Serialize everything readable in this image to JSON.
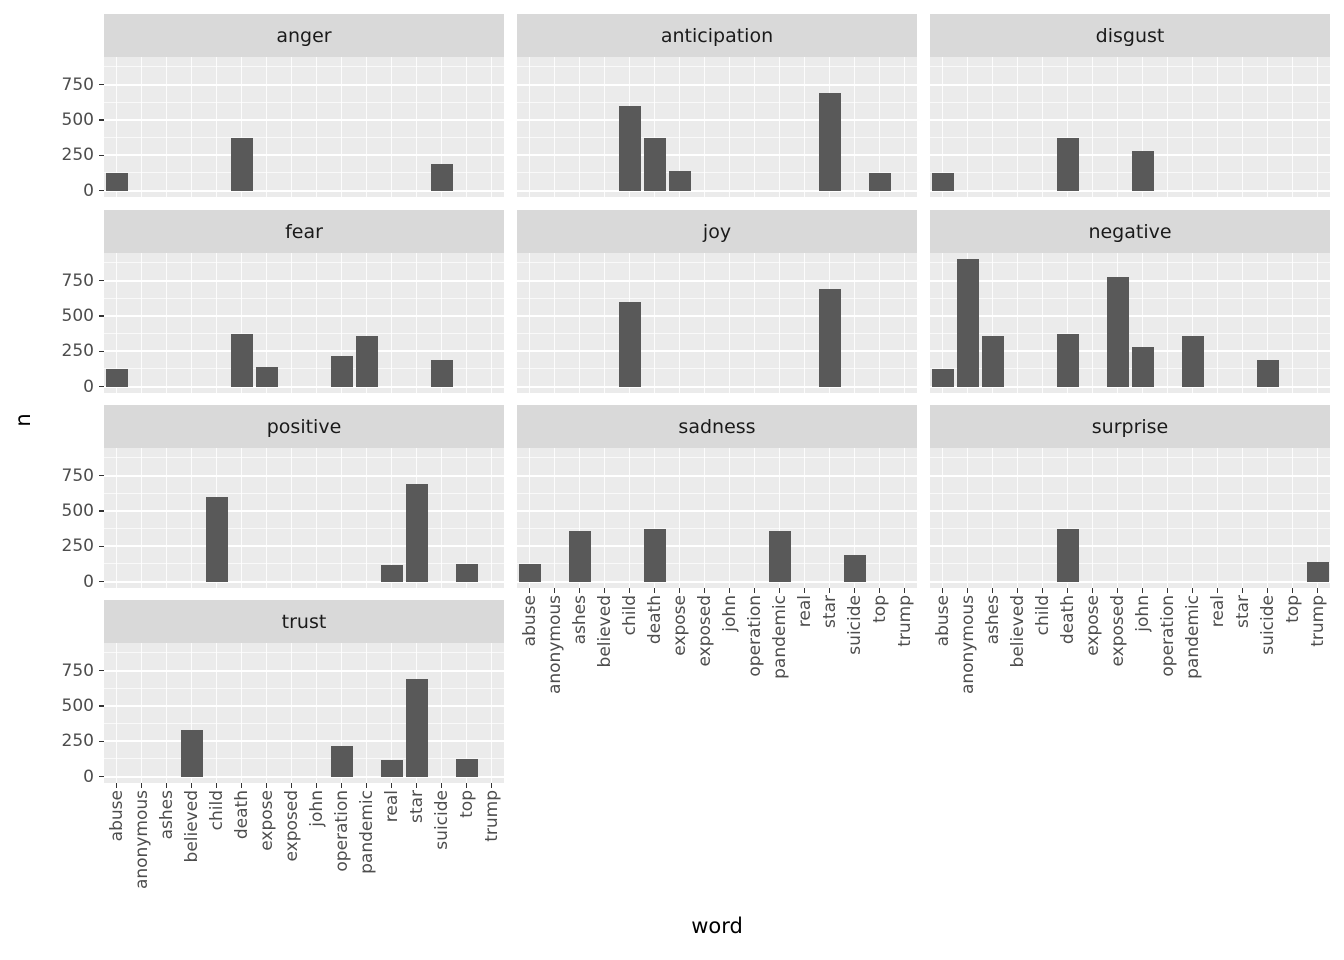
{
  "chart_data": {
    "type": "bar",
    "title": "",
    "xlabel": "word",
    "ylabel": "n",
    "legend": "none",
    "grid": true,
    "categories": [
      "abuse",
      "anonymous",
      "ashes",
      "believed",
      "child",
      "death",
      "expose",
      "exposed",
      "john",
      "operation",
      "pandemic",
      "real",
      "star",
      "suicide",
      "top",
      "trump"
    ],
    "y_ticks": [
      0,
      250,
      500,
      750
    ],
    "y_minor_ticks": [
      125,
      375,
      625,
      875
    ],
    "ylim": [
      -45,
      945
    ],
    "facet_layout": {
      "ncol": 3,
      "nrow": 4
    },
    "facets": [
      {
        "label": "anger",
        "bars": [
          {
            "word": "abuse",
            "n": 125
          },
          {
            "word": "death",
            "n": 370
          },
          {
            "word": "suicide",
            "n": 190
          }
        ]
      },
      {
        "label": "anticipation",
        "bars": [
          {
            "word": "child",
            "n": 600
          },
          {
            "word": "death",
            "n": 370
          },
          {
            "word": "expose",
            "n": 140
          },
          {
            "word": "star",
            "n": 690
          },
          {
            "word": "top",
            "n": 125
          }
        ]
      },
      {
        "label": "disgust",
        "bars": [
          {
            "word": "abuse",
            "n": 125
          },
          {
            "word": "death",
            "n": 370
          },
          {
            "word": "john",
            "n": 280
          }
        ]
      },
      {
        "label": "fear",
        "bars": [
          {
            "word": "abuse",
            "n": 125
          },
          {
            "word": "death",
            "n": 370
          },
          {
            "word": "expose",
            "n": 140
          },
          {
            "word": "operation",
            "n": 215
          },
          {
            "word": "pandemic",
            "n": 360
          },
          {
            "word": "suicide",
            "n": 190
          }
        ]
      },
      {
        "label": "joy",
        "bars": [
          {
            "word": "child",
            "n": 600
          },
          {
            "word": "star",
            "n": 690
          }
        ]
      },
      {
        "label": "negative",
        "bars": [
          {
            "word": "abuse",
            "n": 125
          },
          {
            "word": "anonymous",
            "n": 900
          },
          {
            "word": "ashes",
            "n": 360
          },
          {
            "word": "death",
            "n": 370
          },
          {
            "word": "exposed",
            "n": 775
          },
          {
            "word": "john",
            "n": 280
          },
          {
            "word": "pandemic",
            "n": 360
          },
          {
            "word": "suicide",
            "n": 190
          }
        ]
      },
      {
        "label": "positive",
        "bars": [
          {
            "word": "child",
            "n": 600
          },
          {
            "word": "real",
            "n": 120
          },
          {
            "word": "star",
            "n": 690
          },
          {
            "word": "top",
            "n": 125
          }
        ]
      },
      {
        "label": "sadness",
        "bars": [
          {
            "word": "abuse",
            "n": 125
          },
          {
            "word": "ashes",
            "n": 360
          },
          {
            "word": "death",
            "n": 370
          },
          {
            "word": "pandemic",
            "n": 360
          },
          {
            "word": "suicide",
            "n": 190
          }
        ]
      },
      {
        "label": "surprise",
        "bars": [
          {
            "word": "death",
            "n": 370
          },
          {
            "word": "trump",
            "n": 140
          }
        ]
      },
      {
        "label": "trust",
        "bars": [
          {
            "word": "believed",
            "n": 330
          },
          {
            "word": "operation",
            "n": 215
          },
          {
            "word": "real",
            "n": 120
          },
          {
            "word": "star",
            "n": 690
          },
          {
            "word": "top",
            "n": 125
          }
        ]
      }
    ],
    "colors": {
      "bar": "#595959",
      "panel_bg": "#ebebeb",
      "strip_bg": "#d9d9d9",
      "grid_major": "#ffffff",
      "grid_minor": "rgba(255,255,255,0.7)",
      "grid_vertical": "rgba(255,255,255,0.85)",
      "axis_text": "#4d4d4d",
      "strip_text": "#1a1a1a",
      "axis_title": "#000000",
      "tick": "#333333",
      "background": "#ffffff"
    }
  }
}
